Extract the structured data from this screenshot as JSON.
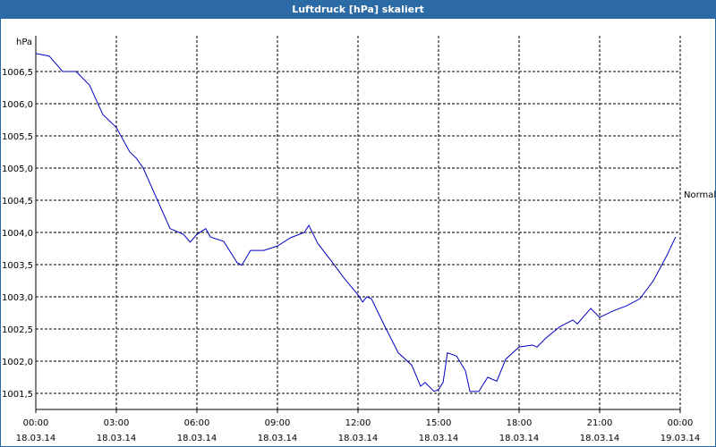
{
  "chart_data": {
    "type": "line",
    "title": "Luftdruck [hPa] skaliert",
    "ylabel": "hPa",
    "xlim": [
      0,
      24
    ],
    "xticks": [
      {
        "value": 0,
        "label": "00:00"
      },
      {
        "value": 3,
        "label": "03:00"
      },
      {
        "value": 6,
        "label": "06:00"
      },
      {
        "value": 9,
        "label": "09:00"
      },
      {
        "value": 12,
        "label": "12:00"
      },
      {
        "value": 15,
        "label": "15:00"
      },
      {
        "value": 18,
        "label": "18:00"
      },
      {
        "value": 21,
        "label": "21:00"
      },
      {
        "value": 24,
        "label": "00:00"
      }
    ],
    "xtick_dates": [
      "18.03.14",
      "18.03.14",
      "18.03.14",
      "18.03.14",
      "18.03.14",
      "18.03.14",
      "18.03.14",
      "18.03.14",
      "19.03.14"
    ],
    "ylim": [
      1001.25,
      1007.0
    ],
    "yticks": [
      {
        "value": 1001.5,
        "label": "1001,5"
      },
      {
        "value": 1002.0,
        "label": "1002,0"
      },
      {
        "value": 1002.5,
        "label": "1002,5"
      },
      {
        "value": 1003.0,
        "label": "1003,0"
      },
      {
        "value": 1003.5,
        "label": "1003,5"
      },
      {
        "value": 1004.0,
        "label": "1004,0"
      },
      {
        "value": 1004.5,
        "label": "1004,5"
      },
      {
        "value": 1005.0,
        "label": "1005,0"
      },
      {
        "value": 1005.5,
        "label": "1005,5"
      },
      {
        "value": 1006.0,
        "label": "1006,0"
      },
      {
        "value": 1006.5,
        "label": "1006,5"
      }
    ],
    "grid": true,
    "x": [
      0,
      0.5,
      1,
      1.5,
      2,
      2.5,
      3,
      3.5,
      3.75,
      4,
      4.5,
      5,
      5.5,
      5.75,
      6,
      6.33,
      6.5,
      7,
      7.5,
      7.67,
      8,
      8.5,
      9,
      9.5,
      10,
      10.17,
      10.5,
      11,
      11.5,
      12,
      12.17,
      12.33,
      12.5,
      13,
      13.5,
      14,
      14.33,
      14.5,
      14.83,
      15,
      15.17,
      15.33,
      15.67,
      16,
      16.17,
      16.5,
      16.83,
      17.17,
      17.5,
      18,
      18.5,
      18.67,
      19,
      19.5,
      20,
      20.17,
      20.67,
      21,
      21.5,
      22,
      22.5,
      23,
      23.5,
      23.83
    ],
    "series": [
      {
        "name": "Normal",
        "color": "#0000c0",
        "values": [
          1006.78,
          1006.74,
          1006.5,
          1006.5,
          1006.29,
          1005.83,
          1005.63,
          1005.25,
          1005.15,
          1005.0,
          1004.53,
          1004.06,
          1003.97,
          1003.85,
          1003.97,
          1004.06,
          1003.93,
          1003.86,
          1003.53,
          1003.49,
          1003.72,
          1003.72,
          1003.79,
          1003.92,
          1004.0,
          1004.11,
          1003.83,
          1003.56,
          1003.28,
          1003.03,
          1002.92,
          1003.0,
          1002.97,
          1002.54,
          1002.13,
          1001.94,
          1001.61,
          1001.67,
          1001.53,
          1001.56,
          1001.67,
          1002.13,
          1002.08,
          1001.85,
          1001.53,
          1001.53,
          1001.75,
          1001.69,
          1002.03,
          1002.22,
          1002.25,
          1002.22,
          1002.36,
          1002.53,
          1002.64,
          1002.58,
          1002.82,
          1002.68,
          1002.78,
          1002.86,
          1002.97,
          1003.25,
          1003.64,
          1003.93
        ]
      }
    ]
  }
}
